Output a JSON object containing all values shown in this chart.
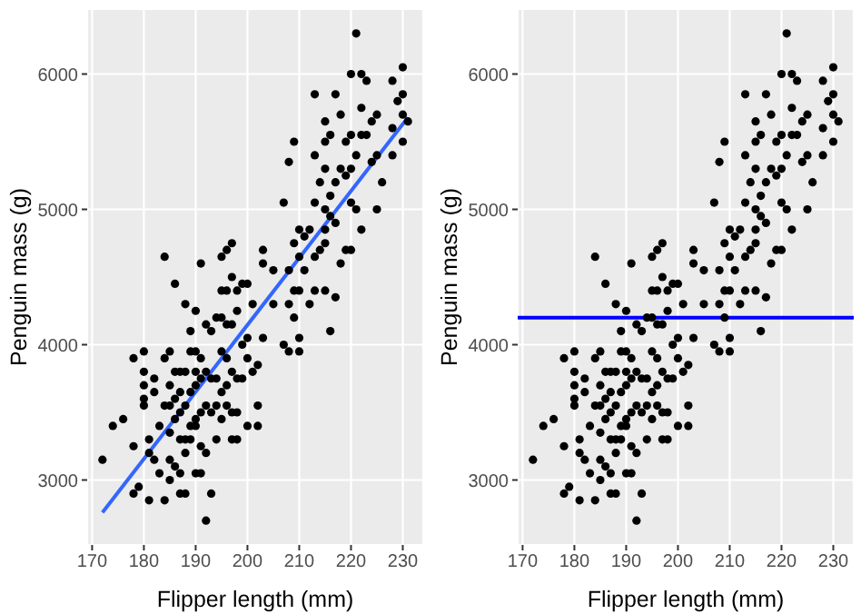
{
  "chart_data": [
    {
      "type": "scatter",
      "xlabel": "Flipper length (mm)",
      "ylabel": "Penguin mass (g)",
      "xlim": [
        169.05,
        233.95
      ],
      "ylim": [
        2520,
        6480
      ],
      "xticks": [
        170,
        180,
        190,
        200,
        210,
        220,
        230
      ],
      "yticks": [
        3000,
        4000,
        5000,
        6000
      ],
      "grid": true,
      "series": [
        {
          "color": "#000000",
          "marker": "circle",
          "x": [
            172,
            174,
            176,
            178,
            178,
            178,
            179,
            180,
            180,
            180,
            180,
            180,
            181,
            181,
            181,
            182,
            182,
            182,
            183,
            183,
            184,
            184,
            184,
            184,
            185,
            185,
            185,
            185,
            185,
            185,
            186,
            186,
            186,
            186,
            186,
            187,
            187,
            187,
            187,
            187,
            187,
            188,
            188,
            188,
            188,
            188,
            188,
            189,
            189,
            189,
            189,
            189,
            190,
            190,
            190,
            190,
            190,
            190,
            190,
            191,
            191,
            191,
            191,
            191,
            191,
            192,
            192,
            192,
            192,
            192,
            193,
            193,
            193,
            193,
            194,
            194,
            194,
            194,
            195,
            195,
            195,
            195,
            195,
            195,
            196,
            196,
            196,
            196,
            196,
            196,
            197,
            197,
            197,
            197,
            197,
            197,
            198,
            198,
            198,
            198,
            198,
            199,
            199,
            199,
            200,
            200,
            200,
            200,
            201,
            201,
            202,
            202,
            202,
            203,
            203,
            203,
            205,
            205,
            207,
            207,
            208,
            208,
            208,
            208,
            209,
            209,
            209,
            209,
            210,
            210,
            210,
            210,
            210,
            211,
            211,
            212,
            212,
            213,
            213,
            213,
            213,
            213,
            214,
            214,
            215,
            215,
            215,
            215,
            215,
            215,
            215,
            216,
            216,
            216,
            216,
            217,
            217,
            217,
            217,
            218,
            218,
            218,
            219,
            219,
            219,
            220,
            220,
            220,
            220,
            220,
            221,
            221,
            221,
            222,
            222,
            222,
            222,
            223,
            223,
            224,
            224,
            225,
            225,
            225,
            226,
            228,
            228,
            228,
            229,
            230,
            230,
            230,
            230,
            231
          ],
          "values": [
            3150,
            3400,
            3450,
            3900,
            3250,
            2900,
            2950,
            3950,
            3800,
            3700,
            3600,
            3550,
            3300,
            3200,
            2850,
            3750,
            3650,
            3150,
            3400,
            3050,
            4650,
            3550,
            3900,
            2850,
            3950,
            3700,
            3550,
            3350,
            3150,
            3000,
            4450,
            3800,
            3600,
            3450,
            3100,
            3800,
            3650,
            3500,
            3300,
            2900,
            3050,
            4300,
            3800,
            3550,
            3300,
            3200,
            2900,
            4100,
            3950,
            3650,
            3400,
            3300,
            4250,
            3950,
            3800,
            3700,
            3450,
            3400,
            3050,
            4600,
            3900,
            3750,
            3500,
            3250,
            3050,
            4150,
            3800,
            3550,
            3200,
            2700,
            4100,
            3750,
            3500,
            2900,
            4200,
            3750,
            3550,
            3300,
            4400,
            4650,
            4200,
            3950,
            3650,
            3450,
            4700,
            4400,
            4150,
            3900,
            3700,
            3550,
            4750,
            4500,
            4150,
            3800,
            3500,
            3300,
            4400,
            4250,
            3750,
            3500,
            3300,
            4450,
            4000,
            3750,
            4450,
            4050,
            3900,
            3400,
            4300,
            3800,
            3550,
            3400,
            3850,
            4700,
            4600,
            4050,
            4550,
            4300,
            5050,
            4000,
            5350,
            4550,
            4300,
            3950,
            5500,
            4750,
            4400,
            4200,
            4850,
            4650,
            4400,
            4050,
            3950,
            4550,
            4800,
            4850,
            4300,
            5850,
            5400,
            5050,
            4650,
            4400,
            5200,
            4700,
            5650,
            5500,
            5300,
            5000,
            4850,
            4400,
            4750,
            5550,
            5100,
            4950,
            4100,
            5850,
            5200,
            4900,
            4350,
            5700,
            5300,
            4600,
            5500,
            5250,
            4700,
            6000,
            5550,
            5300,
            5050,
            4700,
            6300,
            5400,
            5000,
            6000,
            5750,
            5550,
            4850,
            5950,
            5550,
            5650,
            5350,
            5700,
            5400,
            5000,
            5200,
            5950,
            5600,
            5400,
            5800,
            6050,
            5850,
            5700,
            5500,
            5650
          ]
        },
        {
          "type": "line",
          "color": "#3366ff",
          "x": [
            172,
            231
          ],
          "values": [
            2760,
            5680
          ]
        }
      ]
    },
    {
      "type": "scatter",
      "xlabel": "Flipper length (mm)",
      "ylabel": "Penguin mass (g)",
      "xlim": [
        169.05,
        233.95
      ],
      "ylim": [
        2520,
        6480
      ],
      "xticks": [
        170,
        180,
        190,
        200,
        210,
        220,
        230
      ],
      "yticks": [
        3000,
        4000,
        5000,
        6000
      ],
      "grid": true,
      "ref_lines": [
        {
          "axis": "y",
          "value": 4200,
          "color": "#0000ff"
        }
      ],
      "series": [
        {
          "color": "#000000",
          "marker": "circle",
          "x": [
            172,
            174,
            176,
            178,
            178,
            178,
            179,
            180,
            180,
            180,
            180,
            180,
            181,
            181,
            181,
            182,
            182,
            182,
            183,
            183,
            184,
            184,
            184,
            184,
            185,
            185,
            185,
            185,
            185,
            185,
            186,
            186,
            186,
            186,
            186,
            187,
            187,
            187,
            187,
            187,
            187,
            188,
            188,
            188,
            188,
            188,
            188,
            189,
            189,
            189,
            189,
            189,
            190,
            190,
            190,
            190,
            190,
            190,
            190,
            191,
            191,
            191,
            191,
            191,
            191,
            192,
            192,
            192,
            192,
            192,
            193,
            193,
            193,
            193,
            194,
            194,
            194,
            194,
            195,
            195,
            195,
            195,
            195,
            195,
            196,
            196,
            196,
            196,
            196,
            196,
            197,
            197,
            197,
            197,
            197,
            197,
            198,
            198,
            198,
            198,
            198,
            199,
            199,
            199,
            200,
            200,
            200,
            200,
            201,
            201,
            202,
            202,
            202,
            203,
            203,
            203,
            205,
            205,
            207,
            207,
            208,
            208,
            208,
            208,
            209,
            209,
            209,
            209,
            210,
            210,
            210,
            210,
            210,
            211,
            211,
            212,
            212,
            213,
            213,
            213,
            213,
            213,
            214,
            214,
            215,
            215,
            215,
            215,
            215,
            215,
            215,
            216,
            216,
            216,
            216,
            217,
            217,
            217,
            217,
            218,
            218,
            218,
            219,
            219,
            219,
            220,
            220,
            220,
            220,
            220,
            221,
            221,
            221,
            222,
            222,
            222,
            222,
            223,
            223,
            224,
            224,
            225,
            225,
            225,
            226,
            228,
            228,
            228,
            229,
            230,
            230,
            230,
            230,
            231
          ],
          "values": [
            3150,
            3400,
            3450,
            3900,
            3250,
            2900,
            2950,
            3950,
            3800,
            3700,
            3600,
            3550,
            3300,
            3200,
            2850,
            3750,
            3650,
            3150,
            3400,
            3050,
            4650,
            3550,
            3900,
            2850,
            3950,
            3700,
            3550,
            3350,
            3150,
            3000,
            4450,
            3800,
            3600,
            3450,
            3100,
            3800,
            3650,
            3500,
            3300,
            2900,
            3050,
            4300,
            3800,
            3550,
            3300,
            3200,
            2900,
            4100,
            3950,
            3650,
            3400,
            3300,
            4250,
            3950,
            3800,
            3700,
            3450,
            3400,
            3050,
            4600,
            3900,
            3750,
            3500,
            3250,
            3050,
            4150,
            3800,
            3550,
            3200,
            2700,
            4100,
            3750,
            3500,
            2900,
            4200,
            3750,
            3550,
            3300,
            4400,
            4650,
            4200,
            3950,
            3650,
            3450,
            4700,
            4400,
            4150,
            3900,
            3700,
            3550,
            4750,
            4500,
            4150,
            3800,
            3500,
            3300,
            4400,
            4250,
            3750,
            3500,
            3300,
            4450,
            4000,
            3750,
            4450,
            4050,
            3900,
            3400,
            4300,
            3800,
            3550,
            3400,
            3850,
            4700,
            4600,
            4050,
            4550,
            4300,
            5050,
            4000,
            5350,
            4550,
            4300,
            3950,
            5500,
            4750,
            4400,
            4200,
            4850,
            4650,
            4400,
            4050,
            3950,
            4550,
            4800,
            4850,
            4300,
            5850,
            5400,
            5050,
            4650,
            4400,
            5200,
            4700,
            5650,
            5500,
            5300,
            5000,
            4850,
            4400,
            4750,
            5550,
            5100,
            4950,
            4100,
            5850,
            5200,
            4900,
            4350,
            5700,
            5300,
            4600,
            5500,
            5250,
            4700,
            6000,
            5550,
            5300,
            5050,
            4700,
            6300,
            5400,
            5000,
            6000,
            5750,
            5550,
            4850,
            5950,
            5550,
            5650,
            5350,
            5700,
            5400,
            5000,
            5200,
            5950,
            5600,
            5400,
            5800,
            6050,
            5850,
            5700,
            5500,
            5650
          ]
        }
      ]
    }
  ]
}
